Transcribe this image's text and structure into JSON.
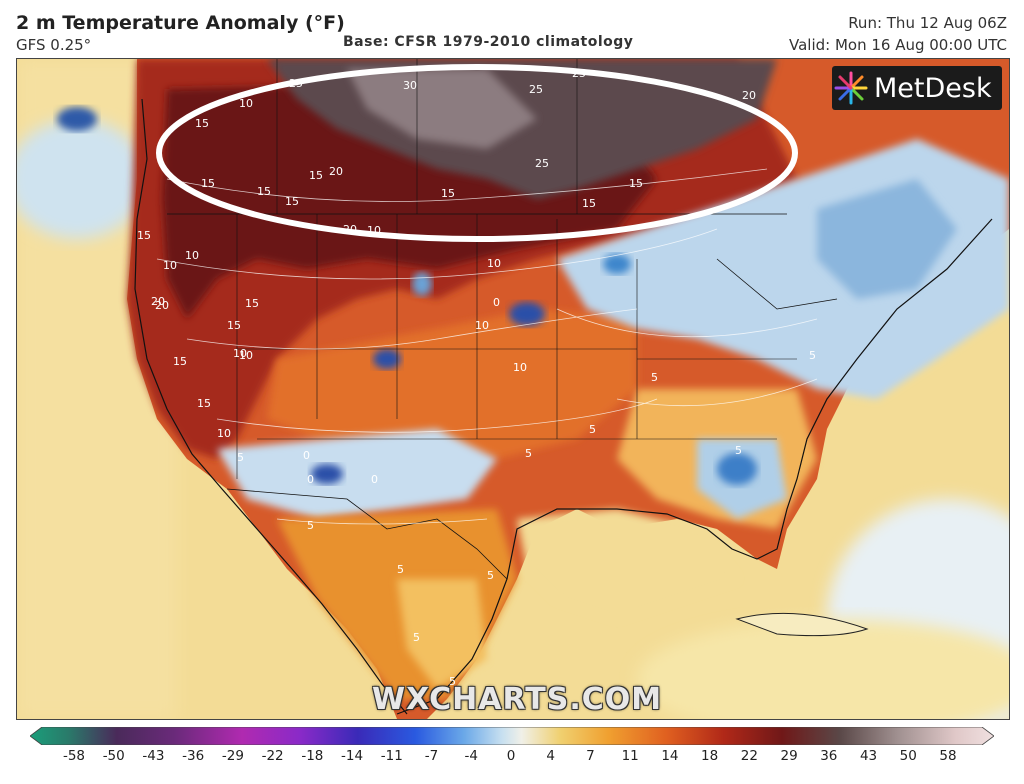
{
  "header": {
    "title": "2 m Temperature Anomaly (°F)",
    "model": "GFS 0.25°",
    "base": "Base: CFSR 1979-2010 climatology",
    "run": "Run: Thu 12 Aug 06Z",
    "valid": "Valid: Mon 16 Aug 00:00 UTC"
  },
  "logo": {
    "text": "MetDesk"
  },
  "watermark": "WXCHARTS.COM",
  "colors": {
    "ocean_warm": "#f0d890",
    "land_hot": "#c2371f",
    "land_very_hot": "#6a1515",
    "land_extreme": "#6b5a5c",
    "land_warm": "#e8802a",
    "land_cool": "#b8d4ec",
    "land_cold": "#3b7fc8",
    "highlight_ellipse": "#ffffff"
  },
  "colorbar": {
    "ticks": [
      "-58",
      "-50",
      "-43",
      "-36",
      "-29",
      "-22",
      "-18",
      "-14",
      "-11",
      "-7",
      "-4",
      "0",
      "4",
      "7",
      "11",
      "14",
      "18",
      "22",
      "29",
      "36",
      "43",
      "50",
      "58"
    ]
  },
  "contour_labels": [
    "25",
    "30",
    "25",
    "25",
    "25",
    "20",
    "10",
    "15",
    "15",
    "20",
    "15",
    "15",
    "20",
    "15",
    "15",
    "10",
    "15",
    "15",
    "15",
    "20",
    "15",
    "15",
    "10",
    "10",
    "10",
    "15",
    "10",
    "15",
    "20",
    "10",
    "10",
    "0",
    "10",
    "5",
    "5",
    "5",
    "5",
    "0",
    "10",
    "0",
    "5",
    "5",
    "5",
    "5",
    "5",
    "5",
    "0",
    "5"
  ]
}
